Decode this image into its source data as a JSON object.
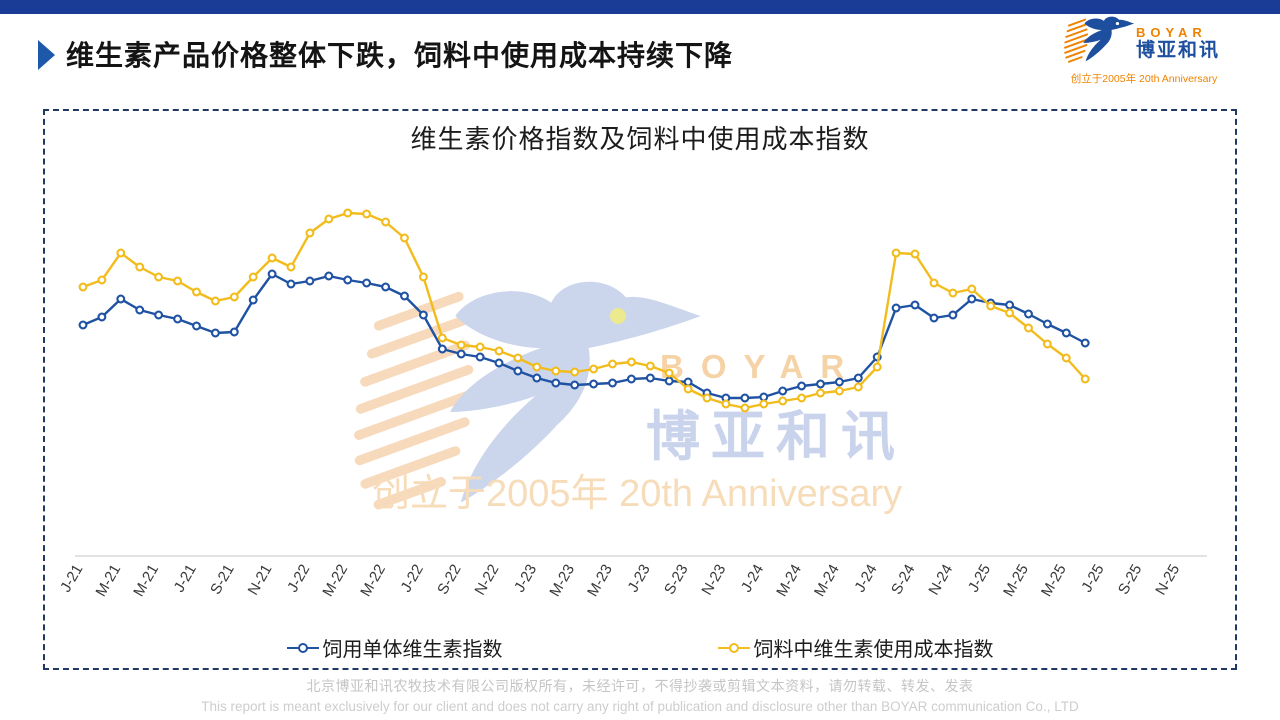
{
  "header": {
    "title": "维生素产品价格整体下跌，饲料中使用成本持续下降"
  },
  "brand": {
    "name_en": "BOYAR",
    "name_cn": "博亚和讯",
    "tagline": "创立于2005年 20th Anniversary"
  },
  "chart_data": {
    "type": "line",
    "title": "维生素价格指数及饲料中使用成本指数",
    "xlabel": "",
    "ylabel": "",
    "y_axis_visible": false,
    "grid": false,
    "legend_position": "bottom",
    "unit_note": "relative index values estimated from plot; no y-axis scale shown in image",
    "x_tick_labels": [
      "J-21",
      "M-21",
      "M-21",
      "J-21",
      "S-21",
      "N-21",
      "J-22",
      "M-22",
      "M-22",
      "J-22",
      "S-22",
      "N-22",
      "J-23",
      "M-23",
      "M-23",
      "J-23",
      "S-23",
      "N-23",
      "J-24",
      "M-24",
      "M-24",
      "J-24",
      "S-24",
      "N-24",
      "J-25",
      "M-25",
      "M-25",
      "J-25",
      "S-25",
      "N-25"
    ],
    "x": [
      "2021-01",
      "2021-02",
      "2021-03",
      "2021-04",
      "2021-05",
      "2021-06",
      "2021-07",
      "2021-08",
      "2021-09",
      "2021-10",
      "2021-11",
      "2021-12",
      "2022-01",
      "2022-02",
      "2022-03",
      "2022-04",
      "2022-05",
      "2022-06",
      "2022-07",
      "2022-08",
      "2022-09",
      "2022-10",
      "2022-11",
      "2022-12",
      "2023-01",
      "2023-02",
      "2023-03",
      "2023-04",
      "2023-05",
      "2023-06",
      "2023-07",
      "2023-08",
      "2023-09",
      "2023-10",
      "2023-11",
      "2023-12",
      "2024-01",
      "2024-02",
      "2024-03",
      "2024-04",
      "2024-05",
      "2024-06",
      "2024-07",
      "2024-08",
      "2024-09",
      "2024-10",
      "2024-11",
      "2024-12",
      "2025-01",
      "2025-02",
      "2025-03",
      "2025-04",
      "2025-05",
      "2025-06"
    ],
    "series": [
      {
        "name": "饲用单体维生素指数",
        "color": "#1f52a2",
        "values": [
          228,
          236,
          254,
          243,
          238,
          234,
          227,
          220,
          221,
          253,
          279,
          269,
          272,
          277,
          273,
          270,
          266,
          257,
          238,
          204,
          199,
          196,
          190,
          182,
          175,
          170,
          168,
          169,
          170,
          174,
          175,
          172,
          171,
          160,
          155,
          155,
          156,
          162,
          167,
          169,
          171,
          175,
          196,
          245,
          248,
          235,
          238,
          254,
          250,
          248,
          239,
          229,
          220,
          210
        ]
      },
      {
        "name": "饲料中维生素使用成本指数",
        "color": "#f2bc1c",
        "values": [
          266,
          273,
          300,
          286,
          276,
          272,
          261,
          252,
          256,
          276,
          295,
          286,
          320,
          334,
          340,
          339,
          331,
          315,
          276,
          215,
          208,
          206,
          202,
          195,
          186,
          182,
          181,
          184,
          189,
          191,
          187,
          180,
          164,
          155,
          149,
          145,
          149,
          152,
          155,
          160,
          162,
          166,
          186,
          300,
          299,
          270,
          260,
          264,
          247,
          240,
          225,
          209,
          195,
          174
        ]
      }
    ]
  },
  "footer": {
    "line1": "北京博亚和讯农牧技术有限公司版权所有，未经许可，不得抄袭或剪辑文本资料，请勿转载、转发、发表",
    "line2": "This report is meant exclusively for our client and does not carry any right of publication and disclosure other than BOYAR communication Co., LTD"
  },
  "colors": {
    "top_bar": "#1a3c96",
    "title_bullet": "#1d58aa",
    "panel_border_dashed": "#1f3864",
    "axis_line": "#d9d9d9",
    "logo_orange": "#ef8200",
    "logo_blue": "#1e4f9e",
    "watermark_blue": "#cbd5ec",
    "watermark_orange": "#f7d9bc"
  }
}
